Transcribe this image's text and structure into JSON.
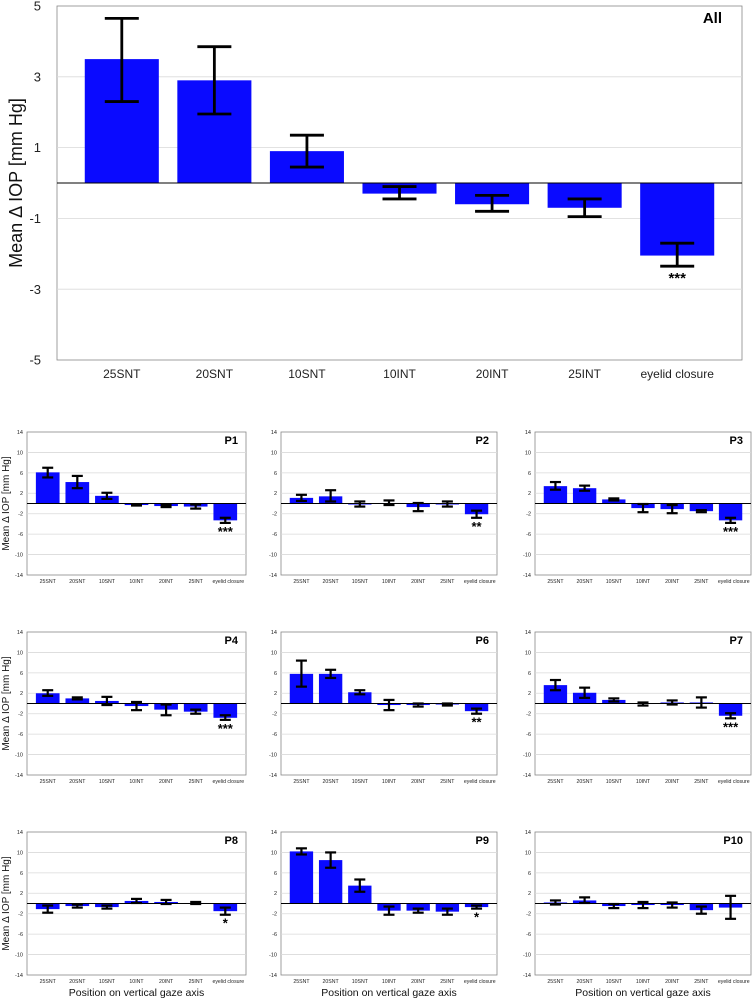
{
  "chart_data": [
    {
      "id": "All",
      "type": "bar",
      "title": "All",
      "ylabel": "Mean Δ IOP [mm Hg]",
      "xlabel": "",
      "ylim": [
        -5,
        5
      ],
      "yticks": [
        5,
        3,
        1,
        -1,
        -3,
        -5
      ],
      "categories": [
        "25SNT",
        "20SNT",
        "10SNT",
        "10INT",
        "20INT",
        "25INT",
        "eyelid closure"
      ],
      "values": [
        3.5,
        2.9,
        0.9,
        -0.3,
        -0.6,
        -0.7,
        -2.05
      ],
      "err_low": [
        2.3,
        1.95,
        0.45,
        -0.45,
        -0.8,
        -0.95,
        -2.35
      ],
      "err_high": [
        4.65,
        3.85,
        1.35,
        -0.1,
        -0.35,
        -0.45,
        -1.7
      ],
      "significance": [
        "",
        "",
        "",
        "",
        "",
        "",
        "***"
      ]
    },
    {
      "id": "P1",
      "type": "bar",
      "title": "P1",
      "ylabel": "Mean Δ IOP [mm Hg]",
      "xlabel": "",
      "ylim": [
        -14,
        14
      ],
      "yticks": [
        14,
        10,
        6,
        2,
        -2,
        -6,
        -10,
        -14
      ],
      "categories": [
        "25SNT",
        "20SNT",
        "10SNT",
        "10INT",
        "20INT",
        "25INT",
        "eyelid closure"
      ],
      "values": [
        6.1,
        4.2,
        1.5,
        -0.3,
        -0.5,
        -0.6,
        -3.3
      ],
      "err_low": [
        5.1,
        3.0,
        0.9,
        -0.4,
        -0.7,
        -1.0,
        -3.8
      ],
      "err_high": [
        7.0,
        5.4,
        2.1,
        -0.2,
        -0.3,
        -0.2,
        -2.8
      ],
      "significance": [
        "",
        "",
        "",
        "",
        "",
        "",
        "***"
      ]
    },
    {
      "id": "P2",
      "type": "bar",
      "title": "P2",
      "ylabel": "",
      "xlabel": "",
      "ylim": [
        -14,
        14
      ],
      "yticks": [
        14,
        10,
        6,
        2,
        -2,
        -6,
        -10,
        -14
      ],
      "categories": [
        "25SNT",
        "20SNT",
        "10SNT",
        "10INT",
        "20INT",
        "25INT",
        "eyelid closure"
      ],
      "values": [
        1.1,
        1.4,
        -0.2,
        0.1,
        -0.7,
        -0.2,
        -2.1
      ],
      "err_low": [
        0.5,
        0.4,
        -0.6,
        -0.3,
        -1.5,
        -0.6,
        -2.8
      ],
      "err_high": [
        1.7,
        2.6,
        0.4,
        0.6,
        0.1,
        0.4,
        -1.4
      ],
      "significance": [
        "",
        "",
        "",
        "",
        "",
        "",
        "**"
      ]
    },
    {
      "id": "P3",
      "type": "bar",
      "title": "P3",
      "ylabel": "",
      "xlabel": "",
      "ylim": [
        -14,
        14
      ],
      "yticks": [
        14,
        10,
        6,
        2,
        -2,
        -6,
        -10,
        -14
      ],
      "categories": [
        "25SNT",
        "20SNT",
        "10SNT",
        "10INT",
        "20INT",
        "25INT",
        "eyelid closure"
      ],
      "values": [
        3.4,
        3.0,
        0.8,
        -0.9,
        -1.1,
        -1.5,
        -3.3
      ],
      "err_low": [
        2.7,
        2.5,
        0.6,
        -1.7,
        -1.9,
        -1.7,
        -3.8
      ],
      "err_high": [
        4.2,
        3.5,
        1.0,
        -0.1,
        -0.3,
        -1.3,
        -2.8
      ],
      "significance": [
        "",
        "",
        "",
        "",
        "",
        "",
        "***"
      ]
    },
    {
      "id": "P4",
      "type": "bar",
      "title": "P4",
      "ylabel": "Mean Δ IOP [mm Hg]",
      "xlabel": "",
      "ylim": [
        -14,
        14
      ],
      "yticks": [
        14,
        10,
        6,
        2,
        -2,
        -6,
        -10,
        -14
      ],
      "categories": [
        "25SNT",
        "20SNT",
        "10SNT",
        "10INT",
        "20INT",
        "25INT",
        "eyelid closure"
      ],
      "values": [
        2.0,
        1.0,
        0.5,
        -0.5,
        -1.2,
        -1.6,
        -2.8
      ],
      "err_low": [
        1.5,
        0.8,
        -0.3,
        -1.3,
        -2.3,
        -2.0,
        -3.2
      ],
      "err_high": [
        2.6,
        1.2,
        1.3,
        0.3,
        -0.2,
        -1.2,
        -2.3
      ],
      "significance": [
        "",
        "",
        "",
        "",
        "",
        "",
        "***"
      ]
    },
    {
      "id": "P6",
      "type": "bar",
      "title": "P6",
      "ylabel": "",
      "xlabel": "",
      "ylim": [
        -14,
        14
      ],
      "yticks": [
        14,
        10,
        6,
        2,
        -2,
        -6,
        -10,
        -14
      ],
      "categories": [
        "25SNT",
        "20SNT",
        "10SNT",
        "10INT",
        "20INT",
        "25INT",
        "eyelid closure"
      ],
      "values": [
        5.8,
        5.8,
        2.2,
        -0.3,
        -0.3,
        -0.2,
        -1.5
      ],
      "err_low": [
        3.3,
        5.0,
        1.8,
        -1.3,
        -0.6,
        -0.4,
        -2.0
      ],
      "err_high": [
        8.4,
        6.6,
        2.6,
        0.7,
        0.0,
        0.0,
        -1.0
      ],
      "significance": [
        "",
        "",
        "",
        "",
        "",
        "",
        "**"
      ]
    },
    {
      "id": "P7",
      "type": "bar",
      "title": "P7",
      "ylabel": "",
      "xlabel": "",
      "ylim": [
        -14,
        14
      ],
      "yticks": [
        14,
        10,
        6,
        2,
        -2,
        -6,
        -10,
        -14
      ],
      "categories": [
        "25SNT",
        "20SNT",
        "10SNT",
        "10INT",
        "20INT",
        "25INT",
        "eyelid closure"
      ],
      "values": [
        3.6,
        2.1,
        0.7,
        -0.1,
        0.2,
        0.2,
        -2.4
      ],
      "err_low": [
        2.6,
        1.1,
        0.4,
        -0.4,
        -0.2,
        -0.8,
        -2.9
      ],
      "err_high": [
        4.6,
        3.1,
        1.0,
        0.2,
        0.6,
        1.2,
        -1.9
      ],
      "significance": [
        "",
        "",
        "",
        "",
        "",
        "",
        "***"
      ]
    },
    {
      "id": "P8",
      "type": "bar",
      "title": "P8",
      "ylabel": "Mean Δ IOP [mm Hg]",
      "xlabel": "Position on vertical gaze axis",
      "ylim": [
        -14,
        14
      ],
      "yticks": [
        14,
        10,
        6,
        2,
        -2,
        -6,
        -10,
        -14
      ],
      "categories": [
        "25SNT",
        "20SNT",
        "10SNT",
        "10INT",
        "20INT",
        "25INT",
        "eyelid closure"
      ],
      "values": [
        -1.1,
        -0.5,
        -0.7,
        0.5,
        0.3,
        0.1,
        -1.5
      ],
      "err_low": [
        -1.8,
        -0.8,
        -1.0,
        0.1,
        -0.1,
        -0.1,
        -2.2
      ],
      "err_high": [
        -0.4,
        -0.2,
        -0.4,
        0.9,
        0.7,
        0.3,
        -0.8
      ],
      "significance": [
        "",
        "",
        "",
        "",
        "",
        "",
        "*"
      ]
    },
    {
      "id": "P9",
      "type": "bar",
      "title": "P9",
      "ylabel": "",
      "xlabel": "Position on vertical gaze axis",
      "ylim": [
        -14,
        14
      ],
      "yticks": [
        14,
        10,
        6,
        2,
        -2,
        -6,
        -10,
        -14
      ],
      "categories": [
        "25SNT",
        "20SNT",
        "10SNT",
        "10INT",
        "20INT",
        "25INT",
        "eyelid closure"
      ],
      "values": [
        10.2,
        8.5,
        3.5,
        -1.4,
        -1.4,
        -1.6,
        -0.7
      ],
      "err_low": [
        9.6,
        7.0,
        2.3,
        -2.2,
        -1.8,
        -2.2,
        -1.0
      ],
      "err_high": [
        10.8,
        10.0,
        4.7,
        -0.6,
        -1.0,
        -1.0,
        -0.4
      ],
      "significance": [
        "",
        "",
        "",
        "",
        "",
        "",
        "*"
      ]
    },
    {
      "id": "P10",
      "type": "bar",
      "title": "P10",
      "ylabel": "",
      "xlabel": "Position on vertical gaze axis",
      "ylim": [
        -14,
        14
      ],
      "yticks": [
        14,
        10,
        6,
        2,
        -2,
        -6,
        -10,
        -14
      ],
      "categories": [
        "25SNT",
        "20SNT",
        "10SNT",
        "10INT",
        "20INT",
        "25INT",
        "eyelid closure"
      ],
      "values": [
        0.2,
        0.6,
        -0.5,
        -0.3,
        -0.3,
        -1.3,
        -0.8
      ],
      "err_low": [
        -0.2,
        0.1,
        -0.9,
        -0.9,
        -0.8,
        -2.0,
        -3.0
      ],
      "err_high": [
        0.6,
        1.2,
        -0.1,
        0.3,
        0.2,
        -0.6,
        1.5
      ],
      "significance": [
        "",
        "",
        "",
        "",
        "",
        "",
        ""
      ]
    }
  ],
  "colors": {
    "bar": "#0a0aff",
    "error_bar": "#000000",
    "grid": "#d9d9d9",
    "frame": "#888888",
    "zero_line": "#000000"
  }
}
